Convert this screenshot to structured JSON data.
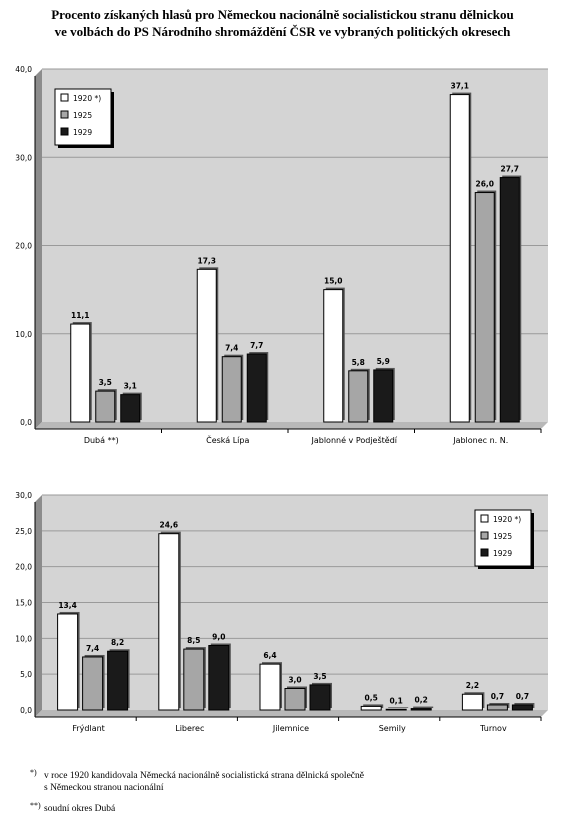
{
  "title": {
    "line1": "Procento získaných hlasů pro Německou nacionálně socialistickou stranu dělnickou",
    "line2": "ve volbách do PS Národního shromáždění ČSR ve vybraných politických okresech"
  },
  "chart_data": [
    {
      "type": "bar",
      "categories": [
        "Dubá **)",
        "Česká Lípa",
        "Jablonné v Podještědí",
        "Jablonec n. N."
      ],
      "series": [
        {
          "name": "1920 *)",
          "values": [
            11.1,
            17.3,
            15.0,
            37.1
          ],
          "labels": [
            "11,1",
            "17,3",
            "15,0",
            "37,1"
          ],
          "color": "#ffffff"
        },
        {
          "name": "1925",
          "values": [
            3.5,
            7.4,
            5.8,
            26.0
          ],
          "labels": [
            "3,5",
            "7,4",
            "5,8",
            "26,0"
          ],
          "color": "#a6a6a6"
        },
        {
          "name": "1929",
          "values": [
            3.1,
            7.7,
            5.9,
            27.7
          ],
          "labels": [
            "3,1",
            "7,7",
            "5,9",
            "27,7"
          ],
          "color": "#1a1a1a"
        }
      ],
      "yticks": [
        "0,0",
        "10,0",
        "20,0",
        "30,0",
        "40,0"
      ],
      "ylim": [
        0,
        40
      ],
      "grid": true,
      "legend_position": "top-left"
    },
    {
      "type": "bar",
      "categories": [
        "Frýdlant",
        "Liberec",
        "Jilemnice",
        "Semily",
        "Turnov"
      ],
      "series": [
        {
          "name": "1920 *)",
          "values": [
            13.4,
            24.6,
            6.4,
            0.5,
            2.2
          ],
          "labels": [
            "13,4",
            "24,6",
            "6,4",
            "0,5",
            "2,2"
          ],
          "color": "#ffffff"
        },
        {
          "name": "1925",
          "values": [
            7.4,
            8.5,
            3.0,
            0.1,
            0.7
          ],
          "labels": [
            "7,4",
            "8,5",
            "3,0",
            "0,1",
            "0,7"
          ],
          "color": "#a6a6a6"
        },
        {
          "name": "1929",
          "values": [
            8.2,
            9.0,
            3.5,
            0.2,
            0.7
          ],
          "labels": [
            "8,2",
            "9,0",
            "3,5",
            "0,2",
            "0,7"
          ],
          "color": "#1a1a1a"
        }
      ],
      "yticks": [
        "0,0",
        "5,0",
        "10,0",
        "15,0",
        "20,0",
        "25,0",
        "30,0"
      ],
      "ylim": [
        0,
        30
      ],
      "grid": true,
      "legend_position": "top-right"
    }
  ],
  "footnotes": [
    {
      "mark": "*)",
      "lines": [
        "v roce 1920 kandidovala Německá nacionálně socialistická strana dělnická společně",
        "s Německou stranou nacionální"
      ]
    },
    {
      "mark": "**)",
      "lines": [
        "soudní okres Dubá"
      ]
    }
  ]
}
